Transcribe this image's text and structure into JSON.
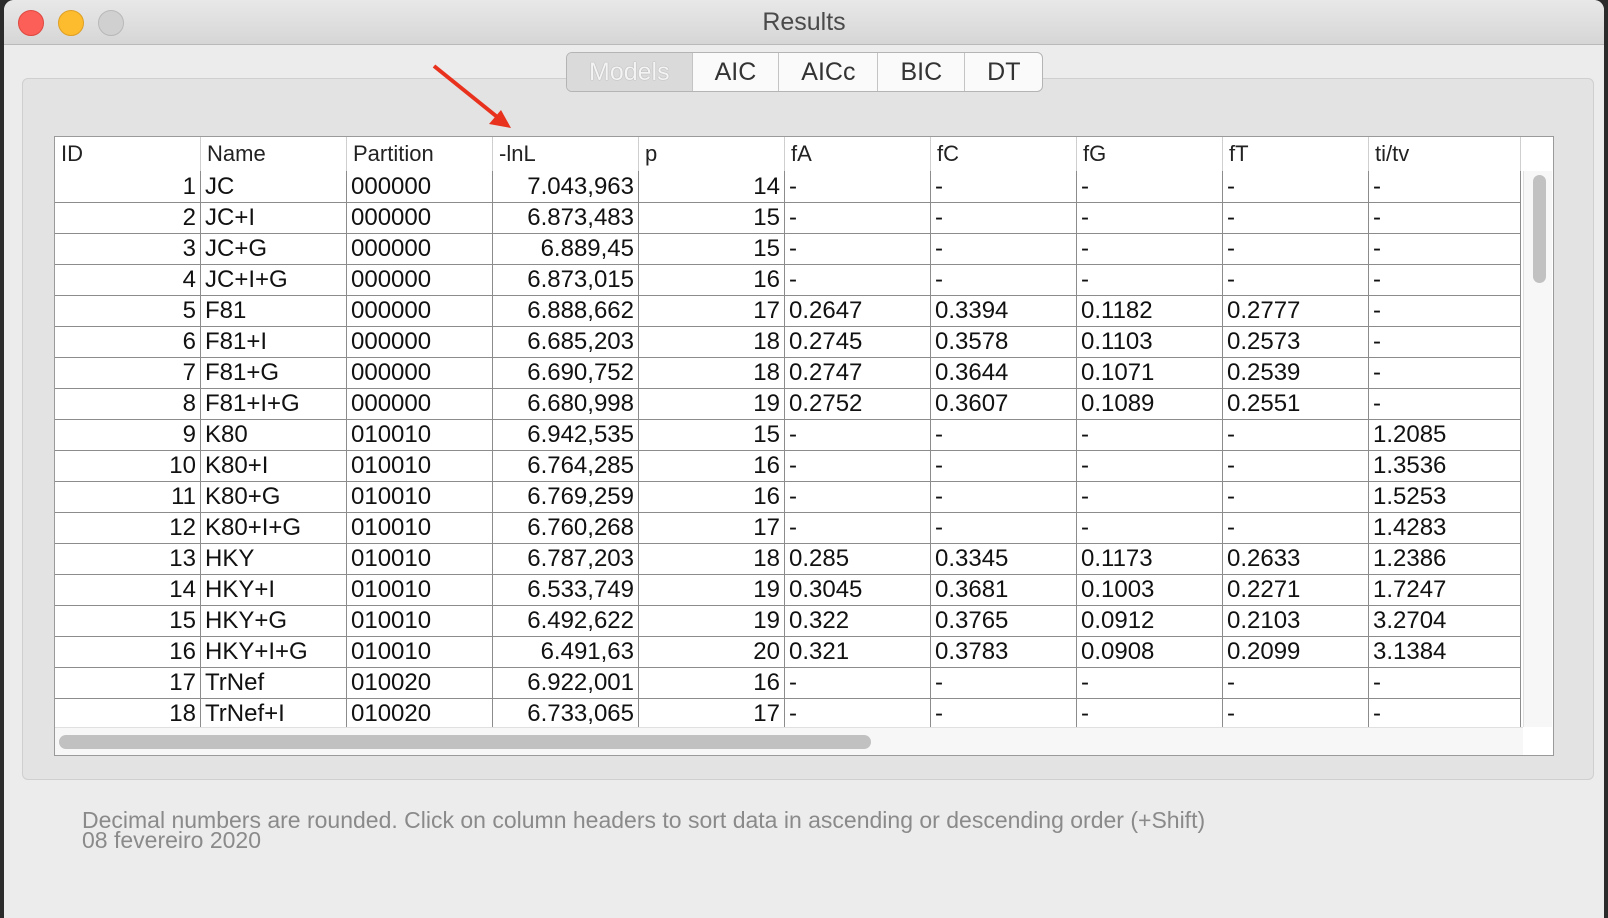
{
  "window": {
    "title": "Results"
  },
  "tabs": [
    {
      "label": "Models",
      "active": true
    },
    {
      "label": "AIC",
      "active": false
    },
    {
      "label": "AICc",
      "active": false
    },
    {
      "label": "BIC",
      "active": false
    },
    {
      "label": "DT",
      "active": false
    }
  ],
  "table": {
    "headers": [
      "ID",
      "Name",
      "Partition",
      "-lnL",
      "p",
      "fA",
      "fC",
      "fG",
      "fT",
      "ti/tv"
    ],
    "rows": [
      [
        "1",
        "JC",
        "000000",
        "7.043,963",
        "14",
        "-",
        "-",
        "-",
        "-",
        "-"
      ],
      [
        "2",
        "JC+I",
        "000000",
        "6.873,483",
        "15",
        "-",
        "-",
        "-",
        "-",
        "-"
      ],
      [
        "3",
        "JC+G",
        "000000",
        "6.889,45",
        "15",
        "-",
        "-",
        "-",
        "-",
        "-"
      ],
      [
        "4",
        "JC+I+G",
        "000000",
        "6.873,015",
        "16",
        "-",
        "-",
        "-",
        "-",
        "-"
      ],
      [
        "5",
        "F81",
        "000000",
        "6.888,662",
        "17",
        "0.2647",
        "0.3394",
        "0.1182",
        "0.2777",
        "-"
      ],
      [
        "6",
        "F81+I",
        "000000",
        "6.685,203",
        "18",
        "0.2745",
        "0.3578",
        "0.1103",
        "0.2573",
        "-"
      ],
      [
        "7",
        "F81+G",
        "000000",
        "6.690,752",
        "18",
        "0.2747",
        "0.3644",
        "0.1071",
        "0.2539",
        "-"
      ],
      [
        "8",
        "F81+I+G",
        "000000",
        "6.680,998",
        "19",
        "0.2752",
        "0.3607",
        "0.1089",
        "0.2551",
        "-"
      ],
      [
        "9",
        "K80",
        "010010",
        "6.942,535",
        "15",
        "-",
        "-",
        "-",
        "-",
        "1.2085"
      ],
      [
        "10",
        "K80+I",
        "010010",
        "6.764,285",
        "16",
        "-",
        "-",
        "-",
        "-",
        "1.3536"
      ],
      [
        "11",
        "K80+G",
        "010010",
        "6.769,259",
        "16",
        "-",
        "-",
        "-",
        "-",
        "1.5253"
      ],
      [
        "12",
        "K80+I+G",
        "010010",
        "6.760,268",
        "17",
        "-",
        "-",
        "-",
        "-",
        "1.4283"
      ],
      [
        "13",
        "HKY",
        "010010",
        "6.787,203",
        "18",
        "0.285",
        "0.3345",
        "0.1173",
        "0.2633",
        "1.2386"
      ],
      [
        "14",
        "HKY+I",
        "010010",
        "6.533,749",
        "19",
        "0.3045",
        "0.3681",
        "0.1003",
        "0.2271",
        "1.7247"
      ],
      [
        "15",
        "HKY+G",
        "010010",
        "6.492,622",
        "19",
        "0.322",
        "0.3765",
        "0.0912",
        "0.2103",
        "3.2704"
      ],
      [
        "16",
        "HKY+I+G",
        "010010",
        "6.491,63",
        "20",
        "0.321",
        "0.3783",
        "0.0908",
        "0.2099",
        "3.1384"
      ],
      [
        "17",
        "TrNef",
        "010020",
        "6.922,001",
        "16",
        "-",
        "-",
        "-",
        "-",
        "-"
      ],
      [
        "18",
        "TrNef+I",
        "010020",
        "6.733,065",
        "17",
        "-",
        "-",
        "-",
        "-",
        "-"
      ]
    ]
  },
  "footer": {
    "note": "Decimal numbers are rounded. Click on column headers to sort data in ascending or descending order (+Shift)",
    "date": "08 fevereiro 2020"
  },
  "colors": {
    "arrow": "#e8321e"
  }
}
